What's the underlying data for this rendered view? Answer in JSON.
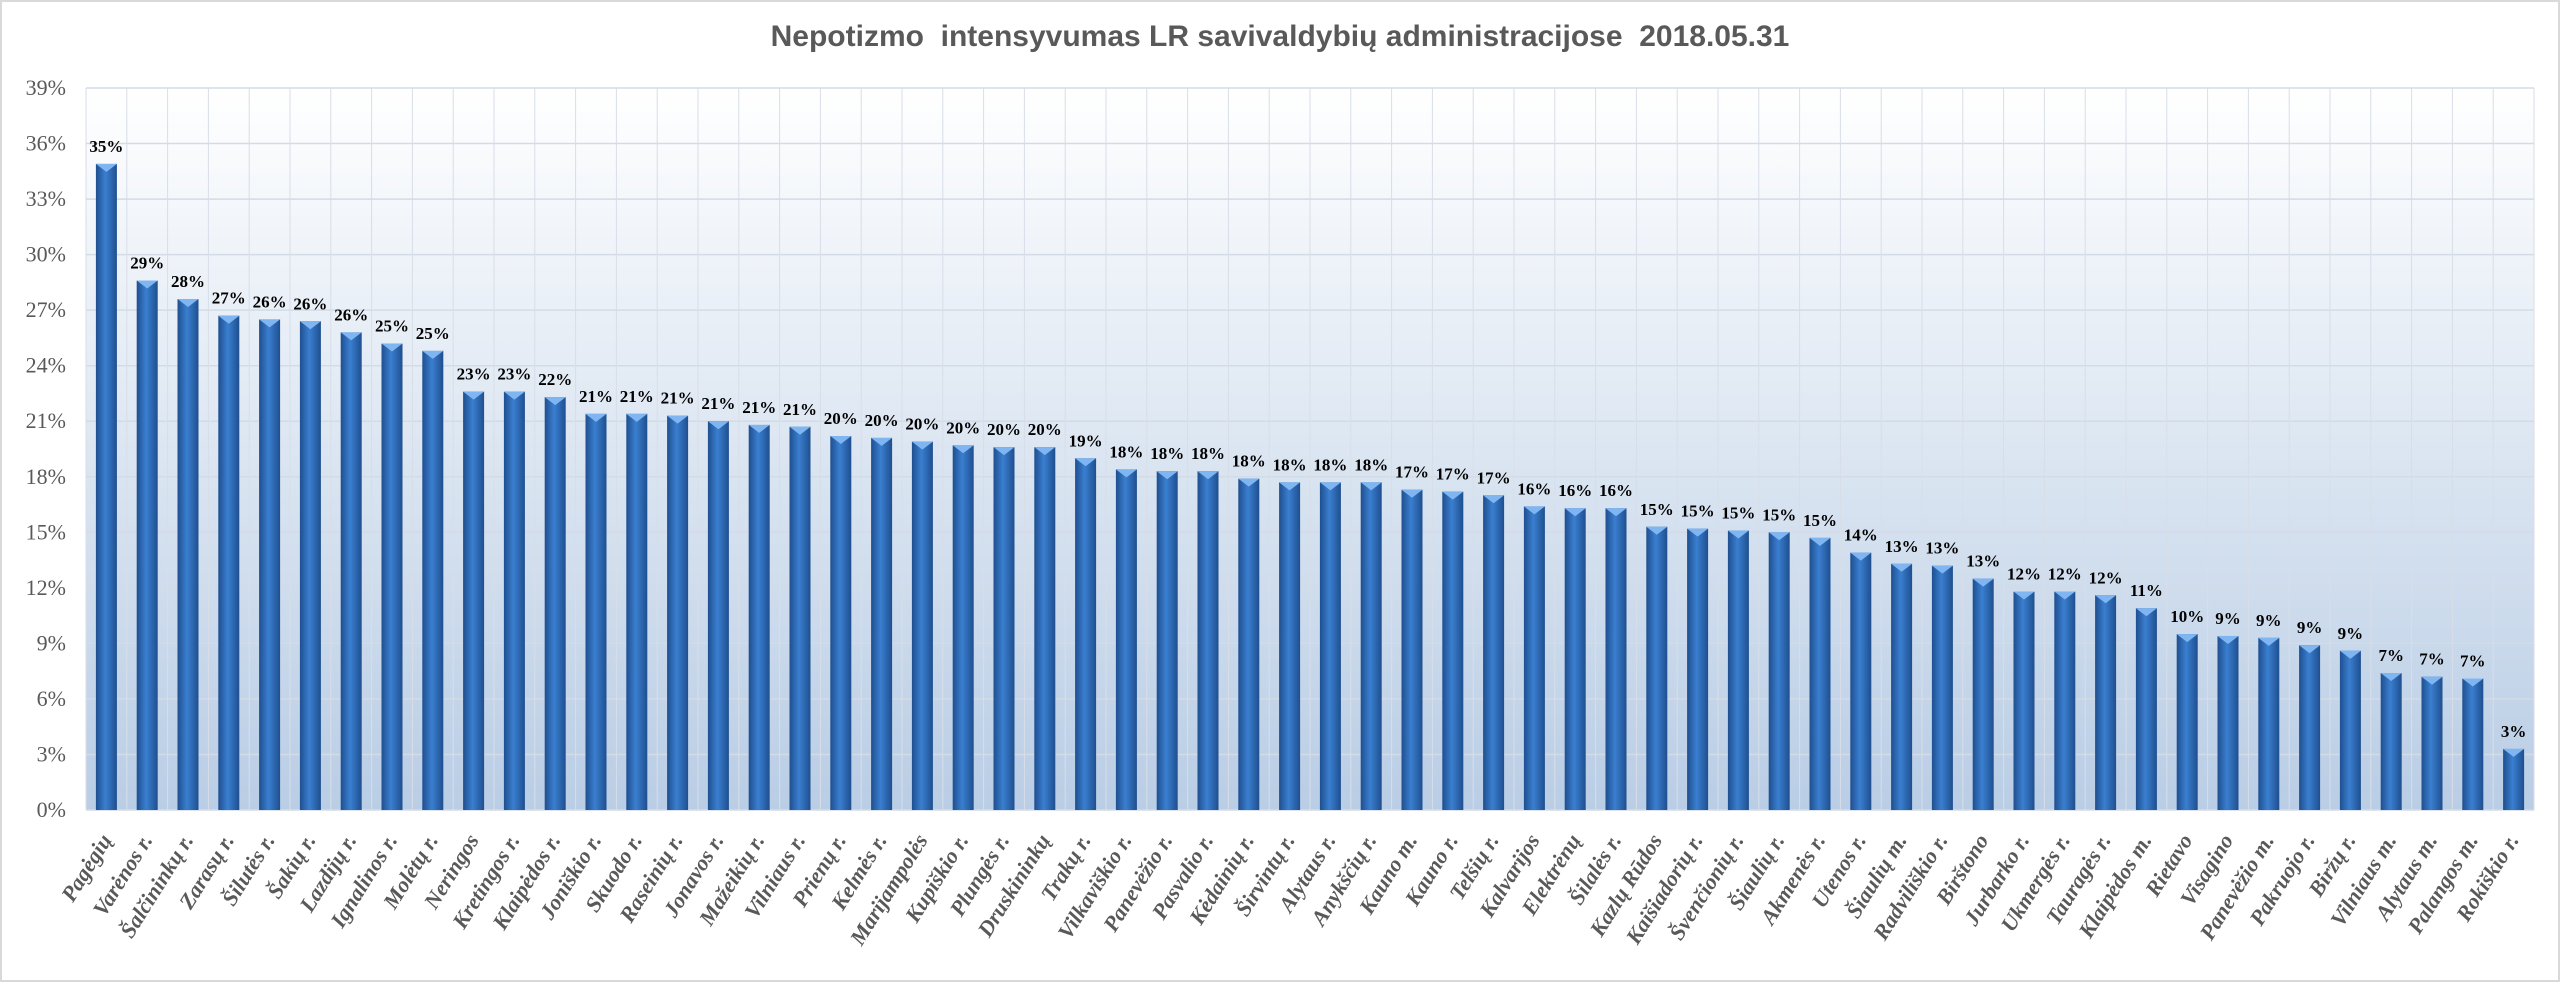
{
  "chart_data": {
    "type": "bar",
    "title": "Nepotizmo  intensyvumas LR savivaldybių administracijose  2018.05.31",
    "xlabel": "",
    "ylabel": "",
    "ylim": [
      0,
      39
    ],
    "yticks": [
      "0%",
      "3%",
      "6%",
      "9%",
      "12%",
      "15%",
      "18%",
      "21%",
      "24%",
      "27%",
      "30%",
      "33%",
      "36%",
      "39%"
    ],
    "grid": true,
    "legend": "none",
    "colors": {
      "bar": "#2e6ec2",
      "bar_light": "#5b9be6",
      "plot_bg_top": "#ffffff",
      "plot_bg_bottom": "#b9cde5",
      "grid": "#d0d8e4"
    },
    "categories": [
      "Pagėgių",
      "Varėnos r.",
      "Šalčininkų r.",
      "Zarasų r.",
      "Šilutės r.",
      "Šakių r.",
      "Lazdijų r.",
      "Ignalinos r.",
      "Molėtų r.",
      "Neringos",
      "Kretingos r.",
      "Klaipėdos r.",
      "Joniškio r.",
      "Skuodo r.",
      "Raseinių r.",
      "Jonavos r.",
      "Mažeikių r.",
      "Vilniaus r.",
      "Prienų r.",
      "Kelmės r.",
      "Marijampolės",
      "Kupiškio r.",
      "Plungės r.",
      "Druskininkų",
      "Trakų r.",
      "Vilkaviškio r.",
      "Panevėžio r.",
      "Pasvalio r.",
      "Kėdainių r.",
      "Širvintų r.",
      "Alytaus r.",
      "Anykščių r.",
      "Kauno m.",
      "Kauno r.",
      "Telšių r.",
      "Kalvarijos",
      "Elektrėnų",
      "Šilalės r.",
      "Kazlų Rūdos",
      "Kaišiadorių r.",
      "Švenčionių r.",
      "Šiaulių r.",
      "Akmenės r.",
      "Utenos r.",
      "Šiaulių m.",
      "Radviliškio r.",
      "Birštono",
      "Jurbarko r.",
      "Ukmergės r.",
      "Tauragės r.",
      "Klaipėdos m.",
      "Rietavo",
      "Visagino",
      "Panevėžio m.",
      "Pakruojo r.",
      "Biržų r.",
      "Vilniaus m.",
      "Alytaus m.",
      "Palangos m.",
      "Rokiškio r."
    ],
    "values": [
      34.9,
      28.6,
      27.6,
      26.7,
      26.5,
      26.4,
      25.8,
      25.2,
      24.8,
      22.6,
      22.6,
      22.3,
      21.4,
      21.4,
      21.3,
      21.0,
      20.8,
      20.7,
      20.2,
      20.1,
      19.9,
      19.7,
      19.6,
      19.6,
      19.0,
      18.4,
      18.3,
      18.3,
      17.9,
      17.7,
      17.7,
      17.7,
      17.3,
      17.2,
      17.0,
      16.4,
      16.3,
      16.3,
      15.3,
      15.2,
      15.1,
      15.0,
      14.7,
      13.9,
      13.3,
      13.2,
      12.5,
      11.8,
      11.8,
      11.6,
      10.9,
      9.5,
      9.4,
      9.3,
      8.9,
      8.6,
      7.4,
      7.2,
      7.1,
      3.3
    ],
    "data_labels": [
      "35%",
      "29%",
      "28%",
      "27%",
      "26%",
      "26%",
      "26%",
      "25%",
      "25%",
      "23%",
      "23%",
      "22%",
      "21%",
      "21%",
      "21%",
      "21%",
      "21%",
      "21%",
      "20%",
      "20%",
      "20%",
      "20%",
      "20%",
      "20%",
      "19%",
      "18%",
      "18%",
      "18%",
      "18%",
      "18%",
      "18%",
      "18%",
      "17%",
      "17%",
      "17%",
      "16%",
      "16%",
      "16%",
      "15%",
      "15%",
      "15%",
      "15%",
      "15%",
      "14%",
      "13%",
      "13%",
      "13%",
      "12%",
      "12%",
      "12%",
      "11%",
      "10%",
      "9%",
      "9%",
      "9%",
      "9%",
      "7%",
      "7%",
      "7%",
      "3%"
    ]
  }
}
